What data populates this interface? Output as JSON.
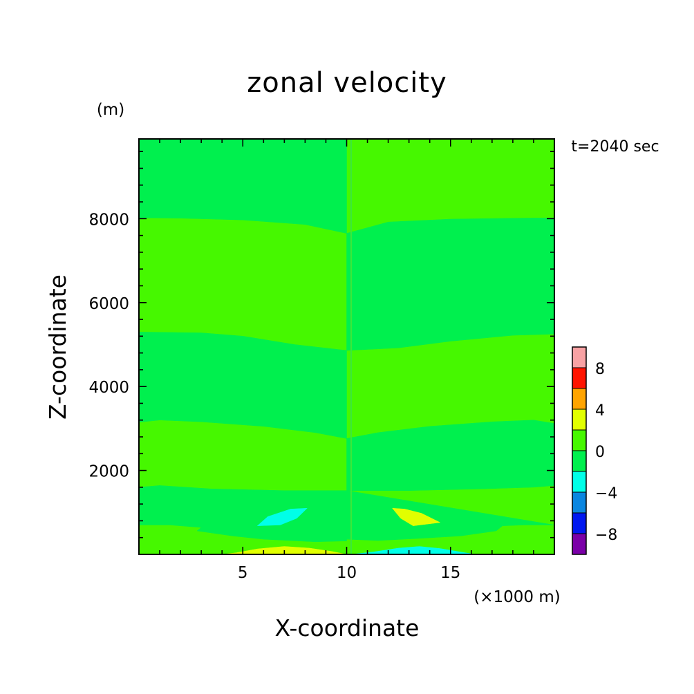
{
  "chart_data": {
    "type": "heatmap",
    "title": "zonal velocity",
    "xlabel": "X-coordinate",
    "ylabel": "Z-coordinate",
    "x_unit": "(×1000 m)",
    "y_unit": "(m)",
    "time_label": "t=2040 sec",
    "xlim": [
      0,
      20
    ],
    "ylim": [
      0,
      9900
    ],
    "xticks": [
      5,
      10,
      15
    ],
    "xtick_labels": [
      "5",
      "10",
      "15"
    ],
    "yticks": [
      2000,
      4000,
      6000,
      8000
    ],
    "ytick_labels": [
      "2000",
      "4000",
      "6000",
      "8000"
    ],
    "x_minor_step": 1,
    "y_minor_step": 400,
    "colorbar": {
      "levels": [
        -10,
        -8,
        -6,
        -4,
        -2,
        0,
        2,
        4,
        6,
        8,
        10
      ],
      "colors": [
        "#7b00a8",
        "#0018f0",
        "#0a86e0",
        "#00ffe8",
        "#00f04e",
        "#46f800",
        "#e2ff00",
        "#ffa400",
        "#ff1400",
        "#f8a2a4"
      ],
      "tick_values": [
        -8,
        -4,
        0,
        4,
        8
      ],
      "tick_labels": [
        "−8",
        "−4",
        "0",
        "4",
        "8"
      ]
    },
    "regions": [
      {
        "level": "0 to 2",
        "color": "#46f800",
        "points": [
          [
            0,
            0
          ],
          [
            20,
            0
          ],
          [
            20,
            9900
          ],
          [
            0,
            9900
          ]
        ]
      },
      {
        "level": "-2 to 0",
        "color": "#00f04e",
        "points": [
          [
            0,
            9900
          ],
          [
            10,
            9900
          ],
          [
            10,
            7650
          ],
          [
            8,
            7860
          ],
          [
            5,
            7970
          ],
          [
            2,
            8010
          ],
          [
            0,
            8020
          ]
        ]
      },
      {
        "level": "-2 to 0",
        "color": "#00f04e",
        "points": [
          [
            10,
            7650
          ],
          [
            12,
            7920
          ],
          [
            15,
            7990
          ],
          [
            18,
            8010
          ],
          [
            20,
            8020
          ],
          [
            20,
            5250
          ],
          [
            18,
            5220
          ],
          [
            15,
            5080
          ],
          [
            12.5,
            4920
          ],
          [
            10,
            4860
          ]
        ]
      },
      {
        "level": "-2 to 0",
        "color": "#00f04e",
        "points": [
          [
            0,
            5300
          ],
          [
            3,
            5280
          ],
          [
            5,
            5200
          ],
          [
            7.5,
            5000
          ],
          [
            10,
            4860
          ],
          [
            10,
            2760
          ],
          [
            8.5,
            2900
          ],
          [
            6,
            3050
          ],
          [
            3,
            3160
          ],
          [
            1,
            3200
          ],
          [
            0,
            3150
          ]
        ]
      },
      {
        "level": "-2 to 0",
        "color": "#00f04e",
        "points": [
          [
            10,
            2760
          ],
          [
            11.5,
            2900
          ],
          [
            14,
            3050
          ],
          [
            17,
            3160
          ],
          [
            19,
            3200
          ],
          [
            20,
            3120
          ],
          [
            20,
            1640
          ],
          [
            19,
            1600
          ],
          [
            16.5,
            1560
          ],
          [
            13,
            1520
          ],
          [
            10,
            1520
          ]
        ]
      },
      {
        "level": "-2 to 0",
        "color": "#00f04e",
        "points": [
          [
            0,
            1600
          ],
          [
            1,
            1640
          ],
          [
            3.5,
            1560
          ],
          [
            7,
            1520
          ],
          [
            10,
            1520
          ],
          [
            10,
            320
          ],
          [
            8.5,
            300
          ],
          [
            6,
            360
          ],
          [
            4.5,
            440
          ],
          [
            2.8,
            560
          ],
          [
            3,
            640
          ],
          [
            1.5,
            700
          ],
          [
            0,
            700
          ]
        ]
      },
      {
        "level": "-2 to 0",
        "color": "#00f04e",
        "points": [
          [
            10,
            1520
          ],
          [
            10,
            360
          ],
          [
            11.5,
            330
          ],
          [
            13.5,
            380
          ],
          [
            15.5,
            440
          ],
          [
            17.2,
            560
          ],
          [
            17.5,
            680
          ],
          [
            18.5,
            700
          ],
          [
            20,
            700
          ]
        ]
      },
      {
        "level": "-4 to -2",
        "color": "#00ffe8",
        "points": [
          [
            5.7,
            680
          ],
          [
            6.8,
            700
          ],
          [
            7.6,
            860
          ],
          [
            8.1,
            1100
          ],
          [
            7.3,
            1080
          ],
          [
            6.2,
            900
          ]
        ]
      },
      {
        "level": "2 to 4",
        "color": "#e2ff00",
        "points": [
          [
            12.2,
            1100
          ],
          [
            12.8,
            1080
          ],
          [
            13.6,
            980
          ],
          [
            14.5,
            760
          ],
          [
            13.2,
            680
          ],
          [
            12.6,
            860
          ]
        ]
      },
      {
        "level": "2 to 4",
        "color": "#e2ff00",
        "points": [
          [
            4,
            0
          ],
          [
            4.7,
            40
          ],
          [
            5.7,
            130
          ],
          [
            7,
            190
          ],
          [
            8.2,
            150
          ],
          [
            9.3,
            70
          ],
          [
            10,
            0
          ]
        ]
      },
      {
        "level": "-4 to -2",
        "color": "#00ffe8",
        "points": [
          [
            10.2,
            0
          ],
          [
            11.3,
            60
          ],
          [
            12.5,
            150
          ],
          [
            13.5,
            190
          ],
          [
            14.5,
            140
          ],
          [
            15.7,
            40
          ],
          [
            16.2,
            0
          ]
        ]
      }
    ]
  }
}
